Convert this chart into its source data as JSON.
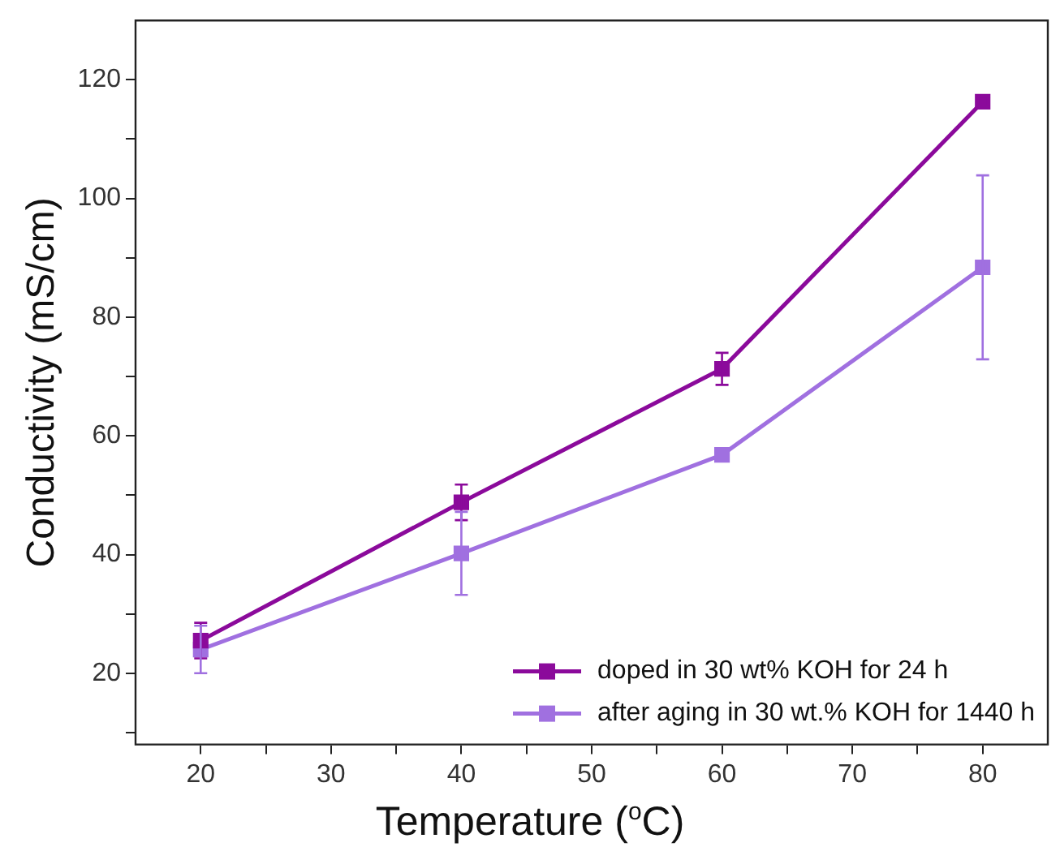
{
  "chart_data": {
    "type": "line",
    "xlabel": "Temperature ($^{o}$C)",
    "ylabel": "Conductivity (mS/cm)",
    "x": [
      20,
      40,
      60,
      80
    ],
    "series": [
      {
        "name": "doped in 30 wt% KOH for 24 h",
        "color": "#8b0a9b",
        "values": [
          25.5,
          48.8,
          71.3,
          116.3
        ],
        "errors": [
          3,
          3,
          2.7,
          null
        ]
      },
      {
        "name": "after aging in 30 wt.% KOH for 1440 h",
        "color": "#a070e0",
        "values": [
          24,
          40.2,
          56.8,
          88.4
        ],
        "errors": [
          4,
          7,
          null,
          15.5
        ]
      }
    ],
    "xlim": [
      15,
      85
    ],
    "xticks": [
      20,
      {
        "value": 25,
        "label": null
      },
      30,
      {
        "value": 35,
        "label": null
      },
      40,
      {
        "value": 45,
        "label": null
      },
      50,
      {
        "value": 55,
        "label": null
      },
      60,
      {
        "value": 65,
        "label": null
      },
      70,
      {
        "value": 75,
        "label": null
      },
      80
    ],
    "ylim": [
      8,
      130
    ],
    "yticks": [
      {
        "value": 10,
        "label": null
      },
      20,
      {
        "value": 30,
        "label": null
      },
      40,
      {
        "value": 50,
        "label": null
      },
      60,
      {
        "value": 70,
        "label": null
      },
      80,
      {
        "value": 90,
        "label": null
      },
      100,
      {
        "value": 110,
        "label": null
      },
      120
    ],
    "marker": "square",
    "legend": "bottom right",
    "grid": false
  }
}
